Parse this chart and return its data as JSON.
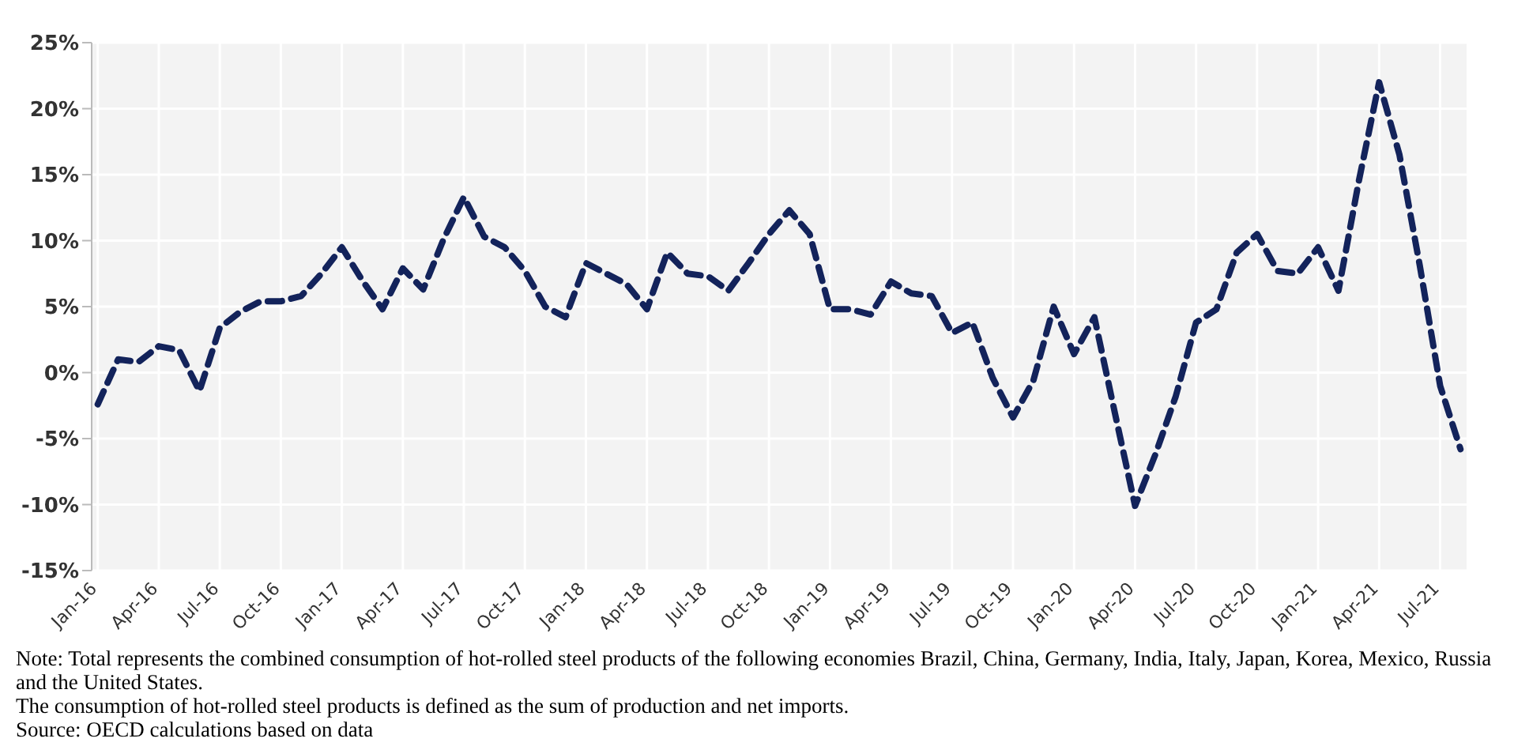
{
  "chart_data": {
    "type": "line",
    "categories": [
      "Jan-16",
      null,
      null,
      "Apr-16",
      null,
      null,
      "Jul-16",
      null,
      null,
      "Oct-16",
      null,
      null,
      "Jan-17",
      null,
      null,
      "Apr-17",
      null,
      null,
      "Jul-17",
      null,
      null,
      "Oct-17",
      null,
      null,
      "Jan-18",
      null,
      null,
      "Apr-18",
      null,
      null,
      "Jul-18",
      null,
      null,
      "Oct-18",
      null,
      null,
      "Jan-19",
      null,
      null,
      "Apr-19",
      null,
      null,
      "Jul-19",
      null,
      null,
      "Oct-19",
      null,
      null,
      "Jan-20",
      null,
      null,
      "Apr-20",
      null,
      null,
      "Jul-20",
      null,
      null,
      "Oct-20",
      null,
      null,
      "Jan-21",
      null,
      null,
      "Apr-21",
      null,
      null,
      "Jul-21",
      null
    ],
    "series": [
      {
        "color": "#13235b",
        "values": [
          -2.4,
          1.0,
          0.8,
          2.0,
          1.7,
          -1.4,
          3.4,
          4.6,
          5.4,
          5.4,
          5.8,
          7.5,
          9.5,
          7.0,
          4.8,
          7.9,
          6.3,
          10.1,
          13.3,
          10.3,
          9.5,
          7.7,
          5.0,
          4.2,
          8.3,
          7.5,
          6.7,
          4.8,
          9.1,
          7.5,
          7.3,
          6.2,
          8.3,
          10.5,
          12.3,
          10.5,
          4.8,
          4.8,
          4.4,
          6.9,
          6.0,
          5.8,
          3.0,
          3.8,
          -0.4,
          -3.4,
          -0.6,
          5.0,
          1.4,
          4.2,
          -3.0,
          -10.1,
          -6.2,
          -1.8,
          3.8,
          4.8,
          9.1,
          10.5,
          7.7,
          7.5,
          9.5,
          6.2,
          14.5,
          22.0,
          16.5,
          8.1,
          -1.0,
          -5.8
        ]
      }
    ],
    "ylim": [
      -15,
      25
    ],
    "yticks": [
      {
        "value": -15,
        "label": "-15%"
      },
      {
        "value": -10,
        "label": "-10%"
      },
      {
        "value": -5,
        "label": "-5%"
      },
      {
        "value": 0,
        "label": "0%"
      },
      {
        "value": 5,
        "label": "5%"
      },
      {
        "value": 10,
        "label": "10%"
      },
      {
        "value": 15,
        "label": "15%"
      },
      {
        "value": 20,
        "label": "20%"
      },
      {
        "value": 25,
        "label": "25%"
      }
    ],
    "grid": true,
    "line_style": "dashed",
    "marker": "none",
    "annotations": [
      "Note: Total represents the combined consumption of hot-rolled steel products of the following economies Brazil, China, Germany, India, Italy, Japan, Korea, Mexico, Russia and the United States.",
      "The consumption of hot-rolled steel products is defined as the sum of production and net imports.",
      "Source: OECD calculations based on data"
    ]
  }
}
